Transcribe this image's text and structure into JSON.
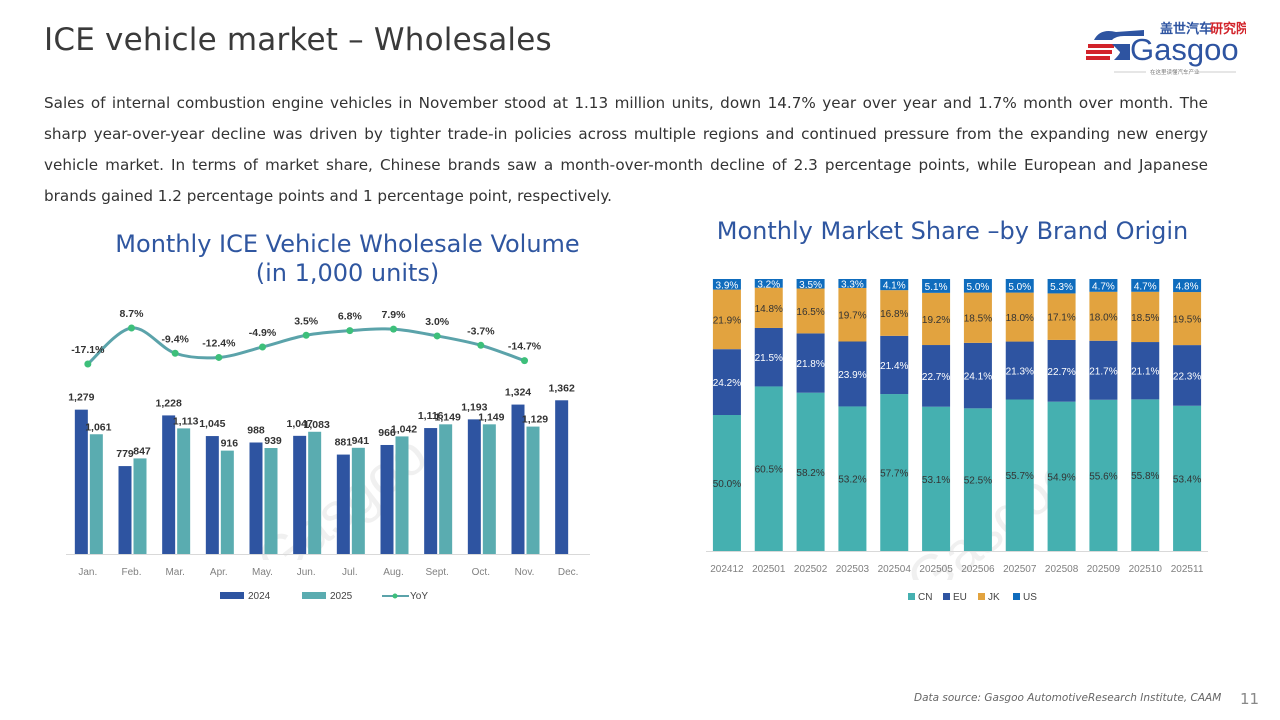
{
  "page": {
    "title": "ICE vehicle market – Wholesales",
    "intro": "Sales of internal combustion engine vehicles in November stood at 1.13 million units, down 14.7% year over year and 1.7% month over month. The sharp year-over-year decline was driven by tighter trade-in policies across multiple regions and continued pressure from the expanding new energy vehicle market. In terms of market share, Chinese brands saw a month-over-month decline of 2.3 percentage points, while European and Japanese brands gained 1.2 percentage points and 1 percentage point, respectively.",
    "footer_source": "Data source: Gasgoo AutomotiveResearch Institute, CAAM",
    "page_number": "11"
  },
  "logo": {
    "brand": "Gasgoo",
    "cn_name_blue": "盖世汽车",
    "cn_name_red": "研究院",
    "tagline": "在这里读懂汽车产业"
  },
  "colors": {
    "title_blue": "#2f56a0",
    "bar_2024": "#2e54a1",
    "bar_2025": "#5aacb0",
    "yoy_line": "#5ba3aa",
    "yoy_marker": "#3dbf7a",
    "cn": "#45b0b0",
    "eu": "#2e54a1",
    "jk": "#e2a33f",
    "us": "#0f6cbd"
  },
  "chart_data": [
    {
      "type": "bar",
      "title": "Monthly ICE Vehicle Wholesale Volume (in 1,000 units)",
      "title_line1": "Monthly ICE Vehicle Wholesale Volume",
      "title_line2": "(in 1,000 units)",
      "categories": [
        "Jan.",
        "Feb.",
        "Mar.",
        "Apr.",
        "May.",
        "Jun.",
        "Jul.",
        "Aug.",
        "Sept.",
        "Oct.",
        "Nov.",
        "Dec."
      ],
      "series": [
        {
          "name": "2024",
          "values": [
            1279,
            779,
            1228,
            1045,
            988,
            1047,
            881,
            966,
            1116,
            1193,
            1324,
            1362
          ]
        },
        {
          "name": "2025",
          "values": [
            1061,
            847,
            1113,
            916,
            939,
            1083,
            941,
            1042,
            1149,
            1149,
            1129,
            null
          ]
        },
        {
          "name": "YoY",
          "type": "line",
          "values": [
            -17.1,
            8.7,
            -9.4,
            -12.4,
            -4.9,
            3.5,
            6.8,
            7.9,
            3.0,
            -3.7,
            -14.7,
            null
          ],
          "labels": [
            "-17.1%",
            "8.7%",
            "-9.4%",
            "-12.4%",
            "-4.9%",
            "3.5%",
            "6.8%",
            "7.9%",
            "3.0%",
            "-3.7%",
            "-14.7%",
            ""
          ]
        }
      ],
      "value_labels_2024": [
        "1,279",
        "779",
        "1,228",
        "1,045",
        "988",
        "1,047",
        "881",
        "966",
        "1,116",
        "1,193",
        "1,324",
        "1,362"
      ],
      "value_labels_2025": [
        "1,061",
        "847",
        "1,113",
        "916",
        "939",
        "1,083",
        "941",
        "1,042",
        "1,149",
        "1,149",
        "1,129",
        ""
      ],
      "xlabel": "",
      "ylabel": "",
      "ylim": [
        0,
        1400
      ],
      "yoy_range": [
        -20,
        10
      ],
      "grid": false,
      "legend": [
        "2024",
        "2025",
        "YoY"
      ],
      "legend_position": "bottom"
    },
    {
      "type": "bar",
      "stacked": true,
      "title": "Monthly Market Share –by Brand Origin",
      "categories": [
        "202412",
        "202501",
        "202502",
        "202503",
        "202504",
        "202505",
        "202506",
        "202507",
        "202508",
        "202509",
        "202510",
        "202511"
      ],
      "series": [
        {
          "name": "CN",
          "values": [
            50.0,
            60.5,
            58.2,
            53.2,
            57.7,
            53.1,
            52.5,
            55.7,
            54.9,
            55.6,
            55.8,
            53.4
          ]
        },
        {
          "name": "EU",
          "values": [
            24.2,
            21.5,
            21.8,
            23.9,
            21.4,
            22.7,
            24.1,
            21.3,
            22.7,
            21.7,
            21.1,
            22.3
          ]
        },
        {
          "name": "JK",
          "values": [
            21.9,
            14.8,
            16.5,
            19.7,
            16.8,
            19.2,
            18.5,
            18.0,
            17.1,
            18.0,
            18.5,
            19.5
          ]
        },
        {
          "name": "US",
          "values": [
            3.9,
            3.2,
            3.5,
            3.3,
            4.1,
            5.1,
            5.0,
            5.0,
            5.3,
            4.7,
            4.7,
            4.8
          ]
        }
      ],
      "unit": "%",
      "ylim": [
        0,
        100
      ],
      "grid": false,
      "legend": [
        "CN",
        "EU",
        "JK",
        "US"
      ],
      "legend_position": "bottom"
    }
  ]
}
